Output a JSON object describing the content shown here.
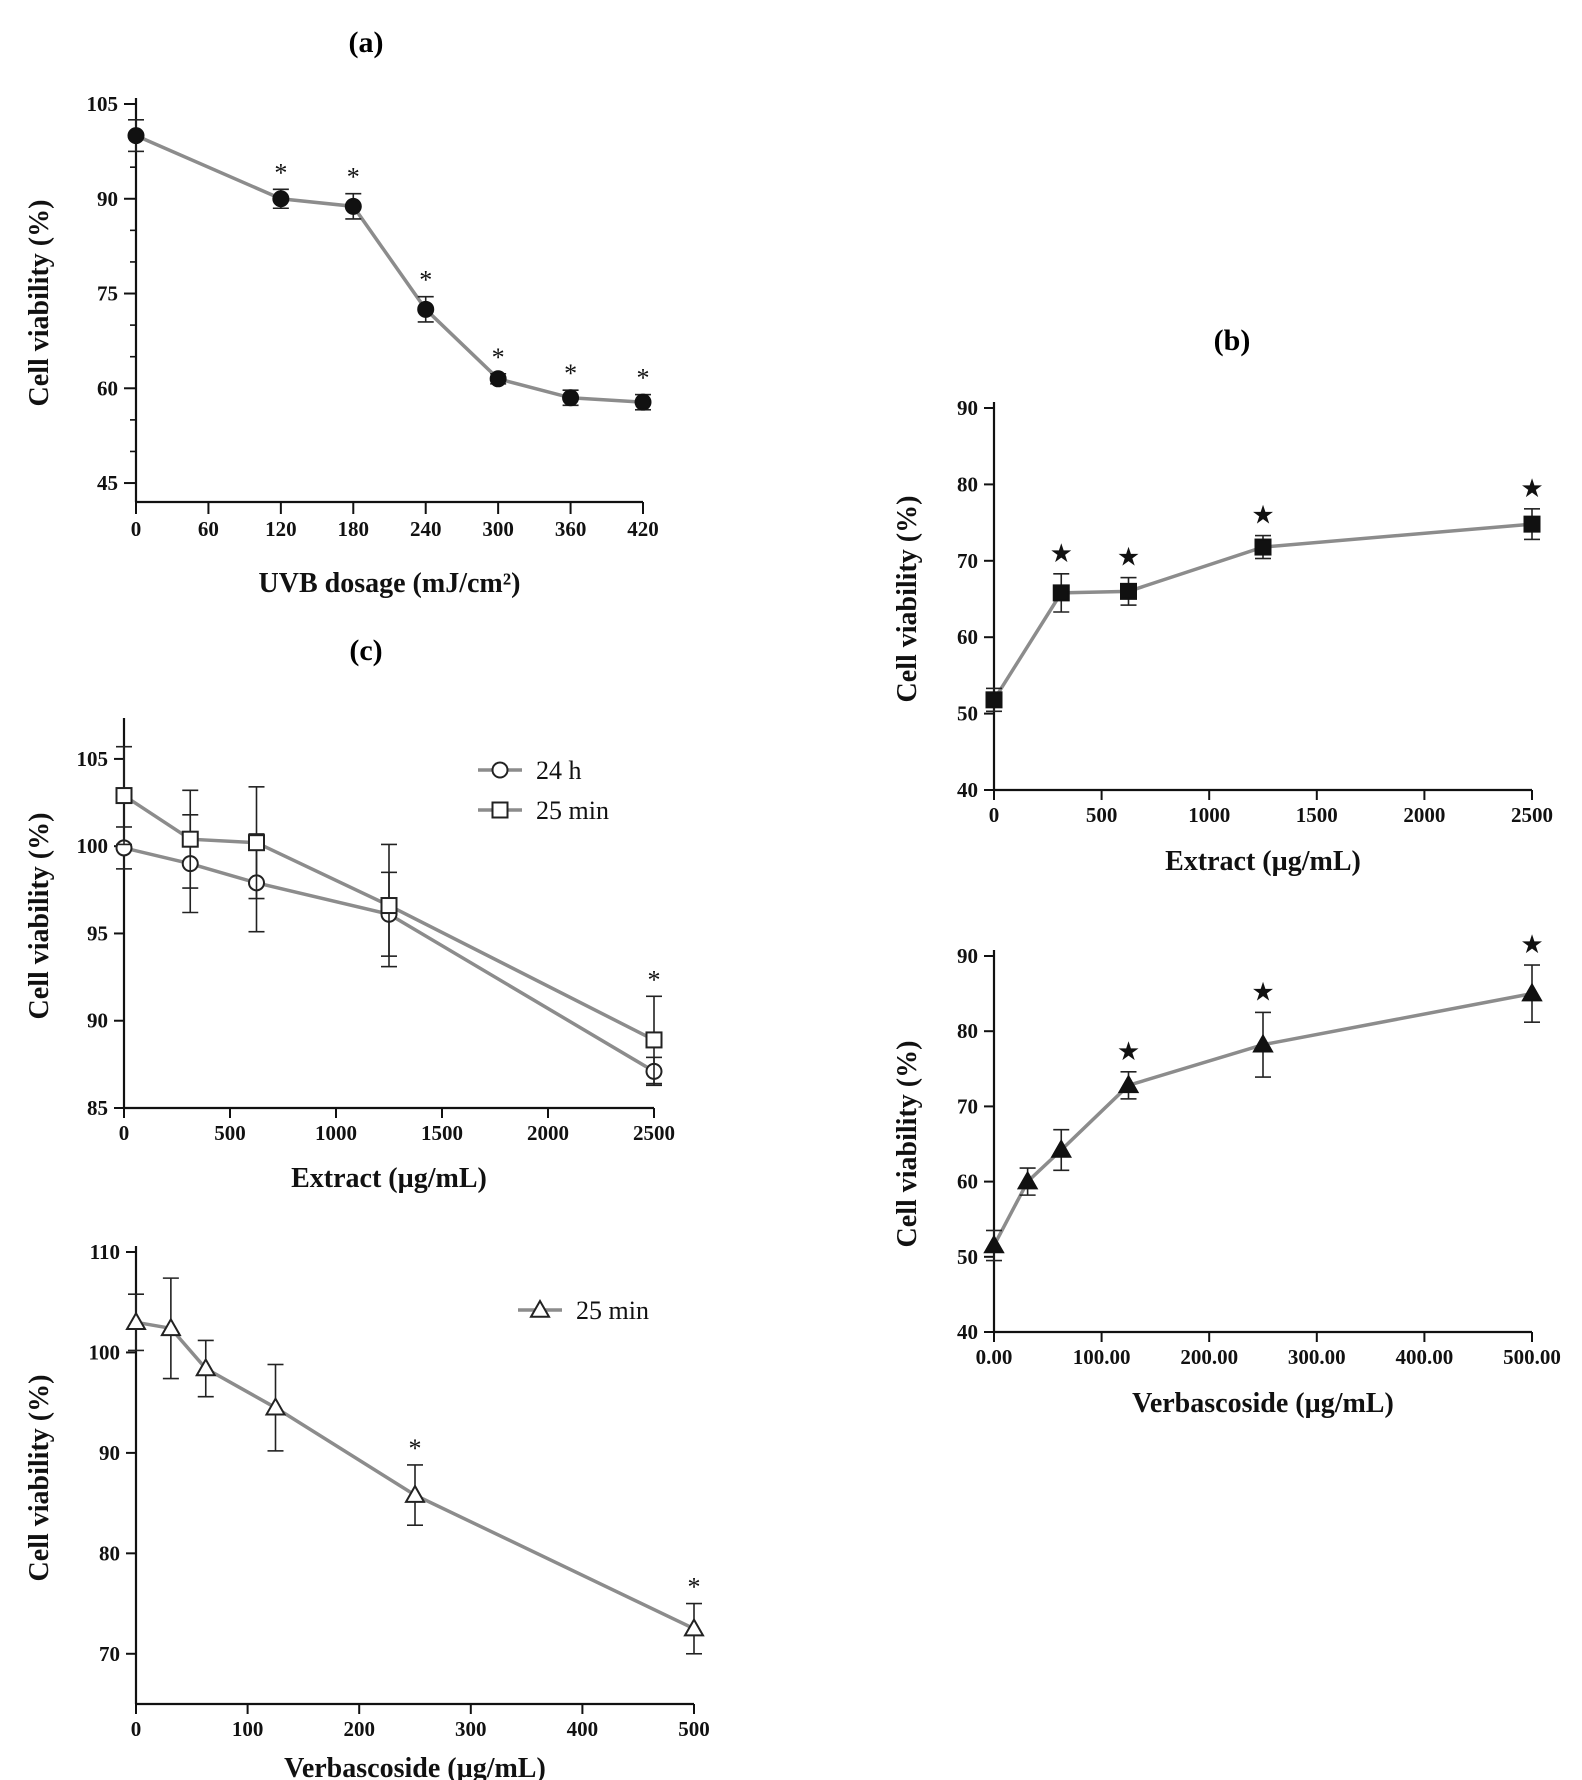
{
  "figure": {
    "panel_a_label": "(a)",
    "panel_b_label": "(b)",
    "panel_c_label": "(c)"
  },
  "colors": {
    "line": "#8c8c8c",
    "marker_filled": "#111111",
    "marker_open_fill": "#ffffff",
    "axis": "#111111",
    "text": "#111111"
  },
  "chart_data": [
    {
      "id": "a",
      "type": "line",
      "panel": "(a)",
      "xlabel": "UVB dosage (mJ/cm²)",
      "ylabel": "Cell viability (%)",
      "xlim": [
        0,
        420
      ],
      "ylim": [
        42,
        105
      ],
      "xticks": [
        0,
        60,
        120,
        180,
        240,
        300,
        360,
        420
      ],
      "xtick_labels": [
        "0",
        "60",
        "120",
        "180",
        "240",
        "300",
        "360",
        "420"
      ],
      "yticks": [
        45,
        60,
        75,
        90,
        105
      ],
      "ytick_labels": [
        "45",
        "60",
        "75",
        "90",
        "105"
      ],
      "y_minor_step": 5,
      "series": [
        {
          "name": "UVB",
          "marker": "circle-filled",
          "x": [
            0,
            120,
            180,
            240,
            300,
            360,
            420
          ],
          "y": [
            100,
            90,
            88.8,
            72.5,
            61.5,
            58.5,
            57.8
          ],
          "err": [
            2.5,
            1.5,
            2.0,
            2.0,
            0.8,
            1.2,
            1.2
          ],
          "sig": [
            "",
            "*",
            "*",
            "*",
            "*",
            "*",
            "*"
          ]
        }
      ]
    },
    {
      "id": "b1",
      "type": "line",
      "panel": "(b)",
      "xlabel": "Extract (µg/mL)",
      "ylabel": "Cell viability (%)",
      "xlim": [
        0,
        2500
      ],
      "ylim": [
        40,
        90
      ],
      "xticks": [
        0,
        500,
        1000,
        1500,
        2000,
        2500
      ],
      "xtick_labels": [
        "0",
        "500",
        "1000",
        "1500",
        "2000",
        "2500"
      ],
      "yticks": [
        40,
        50,
        60,
        70,
        80,
        90
      ],
      "ytick_labels": [
        "40",
        "50",
        "60",
        "70",
        "80",
        "90"
      ],
      "series": [
        {
          "name": "Extract",
          "marker": "square-filled",
          "x": [
            0,
            312.5,
            625,
            1250,
            2500
          ],
          "y": [
            51.8,
            65.8,
            66.0,
            71.8,
            74.8
          ],
          "err": [
            1.5,
            2.5,
            1.8,
            1.5,
            2.0
          ],
          "sig": [
            "",
            "★",
            "★",
            "★",
            "★"
          ]
        }
      ]
    },
    {
      "id": "b2",
      "type": "line",
      "panel": "(b)",
      "xlabel": "Verbascoside (µg/mL)",
      "ylabel": "Cell viability (%)",
      "xlim": [
        0,
        500
      ],
      "ylim": [
        40,
        90
      ],
      "xticks": [
        0,
        100,
        200,
        300,
        400,
        500
      ],
      "xtick_labels": [
        "0.00",
        "100.00",
        "200.00",
        "300.00",
        "400.00",
        "500.00"
      ],
      "yticks": [
        40,
        50,
        60,
        70,
        80,
        90
      ],
      "ytick_labels": [
        "40",
        "50",
        "60",
        "70",
        "80",
        "90"
      ],
      "series": [
        {
          "name": "Verbascoside",
          "marker": "triangle-filled",
          "x": [
            0,
            31.25,
            62.5,
            125,
            250,
            500
          ],
          "y": [
            51.5,
            60.0,
            64.2,
            72.8,
            78.2,
            85.0
          ],
          "err": [
            2.0,
            1.8,
            2.7,
            1.8,
            4.3,
            3.8
          ],
          "sig": [
            "",
            "",
            "",
            "★",
            "★",
            "★"
          ]
        }
      ]
    },
    {
      "id": "c1",
      "type": "line",
      "panel": "(c)",
      "xlabel": "Extract (µg/mL)",
      "ylabel": "Cell viability (%)",
      "xlim": [
        0,
        2500
      ],
      "ylim": [
        85,
        107
      ],
      "xticks": [
        0,
        500,
        1000,
        1500,
        2000,
        2500
      ],
      "xtick_labels": [
        "0",
        "500",
        "1000",
        "1500",
        "2000",
        "2500"
      ],
      "yticks": [
        85,
        90,
        95,
        100,
        105
      ],
      "ytick_labels": [
        "85",
        "90",
        "95",
        "100",
        "105"
      ],
      "legend": "top-right",
      "series": [
        {
          "name": "24 h",
          "marker": "circle-open",
          "x": [
            0,
            312.5,
            625,
            1250,
            2500
          ],
          "y": [
            99.9,
            99.0,
            97.9,
            96.1,
            87.1
          ],
          "err": [
            1.2,
            2.8,
            2.8,
            2.4,
            0.8
          ],
          "sig": [
            "",
            "",
            "",
            "",
            ""
          ]
        },
        {
          "name": "25 min",
          "marker": "square-open",
          "x": [
            0,
            312.5,
            625,
            1250,
            2500
          ],
          "y": [
            102.9,
            100.4,
            100.2,
            96.6,
            88.9
          ],
          "err": [
            2.8,
            2.8,
            3.2,
            3.5,
            2.5
          ],
          "sig": [
            "",
            "",
            "",
            "",
            "*"
          ]
        }
      ]
    },
    {
      "id": "c2",
      "type": "line",
      "panel": "(c)",
      "xlabel": "Verbascoside (µg/mL)",
      "ylabel": "Cell viability (%)",
      "xlim": [
        0,
        500
      ],
      "ylim": [
        65,
        110
      ],
      "xticks": [
        0,
        100,
        200,
        300,
        400,
        500
      ],
      "xtick_labels": [
        "0",
        "100",
        "200",
        "300",
        "400",
        "500"
      ],
      "yticks": [
        70,
        80,
        90,
        100,
        110
      ],
      "ytick_labels": [
        "70",
        "80",
        "90",
        "100",
        "110"
      ],
      "legend": "top-right",
      "series": [
        {
          "name": "25 min",
          "marker": "triangle-open",
          "x": [
            0,
            31.25,
            62.5,
            125,
            250,
            500
          ],
          "y": [
            103.0,
            102.4,
            98.4,
            94.5,
            85.8,
            72.5
          ],
          "err": [
            2.8,
            5.0,
            2.8,
            4.3,
            3.0,
            2.5
          ],
          "sig": [
            "",
            "",
            "",
            "",
            "*",
            "*"
          ]
        }
      ]
    }
  ]
}
